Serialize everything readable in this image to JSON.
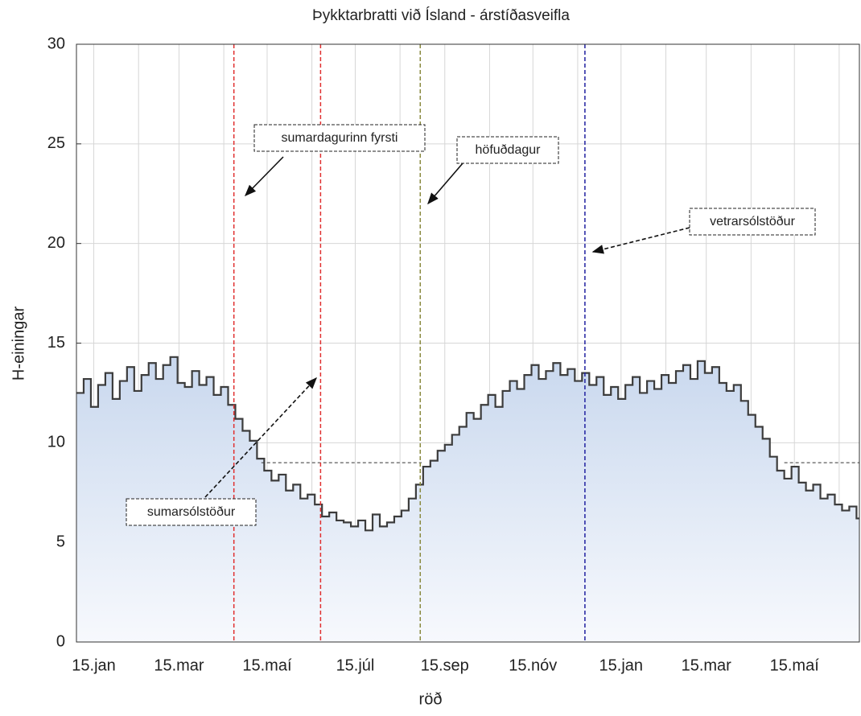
{
  "chart_data": {
    "type": "line",
    "step": true,
    "title": "Þykktarbratti við Ísland - árstíðasveifla",
    "xlabel": "röð",
    "ylabel": "H-einingar",
    "x": [
      2,
      7,
      12,
      17,
      22,
      27,
      32,
      37,
      42,
      47,
      52,
      57,
      62,
      67,
      72,
      77,
      82,
      87,
      92,
      97,
      102,
      107,
      112,
      117,
      122,
      127,
      132,
      137,
      142,
      147,
      152,
      157,
      162,
      167,
      172,
      177,
      182,
      187,
      192,
      197,
      202,
      207,
      212,
      217,
      222,
      227,
      232,
      237,
      242,
      247,
      252,
      257,
      262,
      267,
      272,
      277,
      282,
      287,
      292,
      297,
      302,
      307,
      312,
      317,
      322,
      327,
      332,
      337,
      342,
      347,
      352,
      357,
      362,
      367,
      372,
      377,
      382,
      387,
      392,
      397,
      402,
      407,
      412,
      417,
      422,
      427,
      432,
      437,
      442,
      447,
      452,
      457,
      462,
      467,
      472,
      477,
      482,
      487,
      492,
      497,
      502,
      507,
      512,
      517,
      522,
      527,
      532,
      537,
      542
    ],
    "series": [
      {
        "color": "#3c3c3c",
        "values": [
          12.5,
          13.2,
          11.8,
          12.9,
          13.5,
          12.2,
          13.1,
          13.8,
          12.6,
          13.4,
          14.0,
          13.2,
          13.9,
          14.3,
          13.0,
          12.8,
          13.6,
          12.9,
          13.3,
          12.4,
          12.8,
          11.9,
          11.2,
          10.6,
          10.1,
          9.2,
          8.6,
          8.1,
          8.4,
          7.6,
          7.9,
          7.2,
          7.4,
          6.9,
          6.3,
          6.5,
          6.1,
          6.0,
          5.8,
          6.1,
          5.6,
          6.4,
          5.8,
          6.0,
          6.3,
          6.6,
          7.2,
          7.9,
          8.8,
          9.1,
          9.6,
          9.9,
          10.4,
          10.8,
          11.5,
          11.2,
          11.9,
          12.4,
          11.8,
          12.6,
          13.1,
          12.7,
          13.4,
          13.9,
          13.2,
          13.6,
          14.0,
          13.4,
          13.7,
          13.1,
          13.5,
          12.9,
          13.3,
          12.4,
          12.8,
          12.2,
          12.9,
          13.3,
          12.5,
          13.1,
          12.7,
          13.4,
          13.0,
          13.6,
          13.9,
          13.2,
          14.1,
          13.5,
          13.8,
          13.0,
          12.6,
          12.9,
          12.1,
          11.4,
          10.8,
          10.2,
          9.3,
          8.6,
          8.2,
          8.8,
          8.0,
          7.6,
          7.9,
          7.2,
          7.4,
          6.9,
          6.6,
          6.8,
          6.2
        ]
      }
    ],
    "xlim": [
      2,
      544
    ],
    "ylim": [
      0,
      30
    ],
    "yticks": [
      0,
      5,
      10,
      15,
      20,
      25,
      30
    ],
    "xticks": [
      {
        "value": 14,
        "label": "15.jan"
      },
      {
        "value": 73,
        "label": "15.mar"
      },
      {
        "value": 134,
        "label": "15.maí"
      },
      {
        "value": 195,
        "label": "15.júl"
      },
      {
        "value": 257,
        "label": "15.sep"
      },
      {
        "value": 318,
        "label": "15.nóv"
      },
      {
        "value": 379,
        "label": "15.jan"
      },
      {
        "value": 438,
        "label": "15.mar"
      },
      {
        "value": 499,
        "label": "15.maí"
      }
    ],
    "xminorticks": [
      45,
      104,
      165,
      226,
      288,
      349,
      410,
      469,
      530
    ],
    "grid": true,
    "vlines": [
      {
        "x": 111,
        "color": "#e03030"
      },
      {
        "x": 171,
        "color": "#e03030"
      },
      {
        "x": 240,
        "color": "#8a8a40"
      },
      {
        "x": 354,
        "color": "#2020a0"
      }
    ],
    "hlines": [
      {
        "y": 9,
        "x": [
          130,
          241
        ]
      },
      {
        "y": 9,
        "x": [
          492,
          544
        ]
      }
    ],
    "annotations": [
      "sumardagurinn fyrsti",
      "höfuðdagur",
      "vetrarsólstöður",
      "sumarsólstöður"
    ]
  }
}
